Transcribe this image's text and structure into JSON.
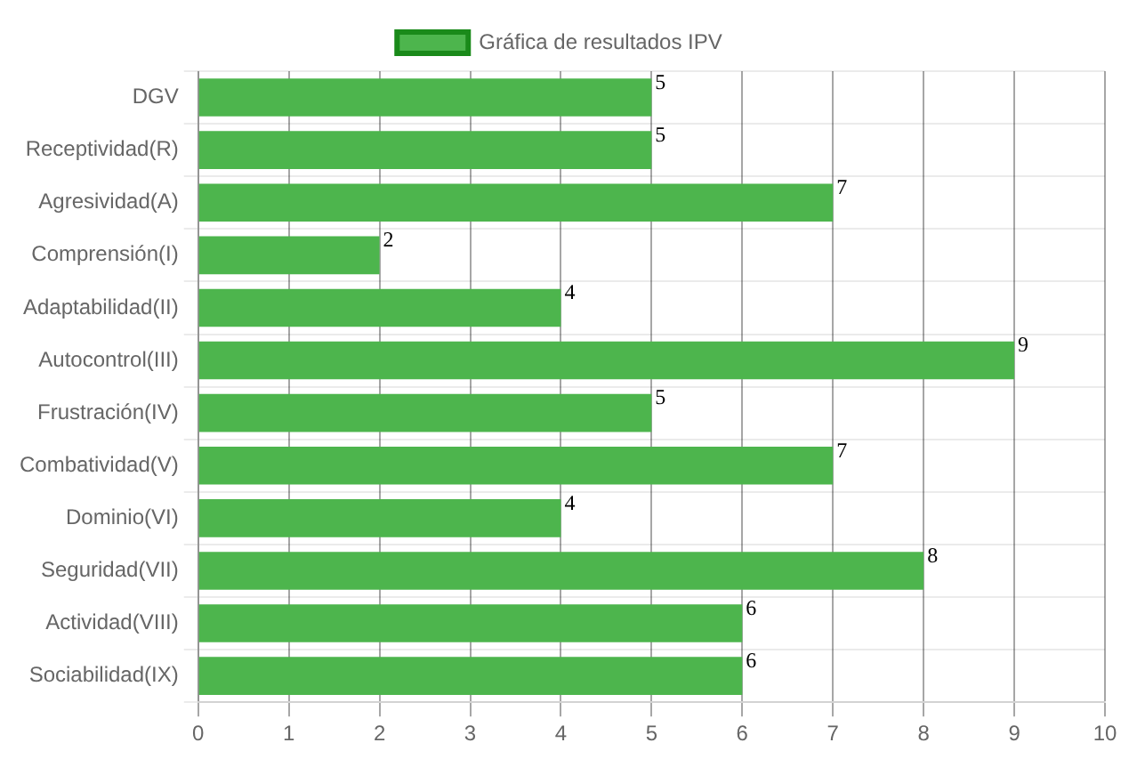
{
  "chart_data": {
    "type": "bar",
    "orientation": "horizontal",
    "categories": [
      "DGV",
      "Receptividad(R)",
      "Agresividad(A)",
      "Comprensión(I)",
      "Adaptabilidad(II)",
      "Autocontrol(III)",
      "Frustración(IV)",
      "Combatividad(V)",
      "Dominio(VI)",
      "Seguridad(VII)",
      "Actividad(VIII)",
      "Sociabilidad(IX)"
    ],
    "series": [
      {
        "name": "Gráfica de resultados IPV",
        "color": "#4db54d",
        "values": [
          5,
          5,
          7,
          2,
          4,
          9,
          5,
          7,
          4,
          8,
          6,
          6
        ]
      }
    ],
    "xlim": [
      0,
      10
    ],
    "xticks": [
      0,
      1,
      2,
      3,
      4,
      5,
      6,
      7,
      8,
      9,
      10
    ],
    "grid": true,
    "legend": "top",
    "data_labels": true
  }
}
